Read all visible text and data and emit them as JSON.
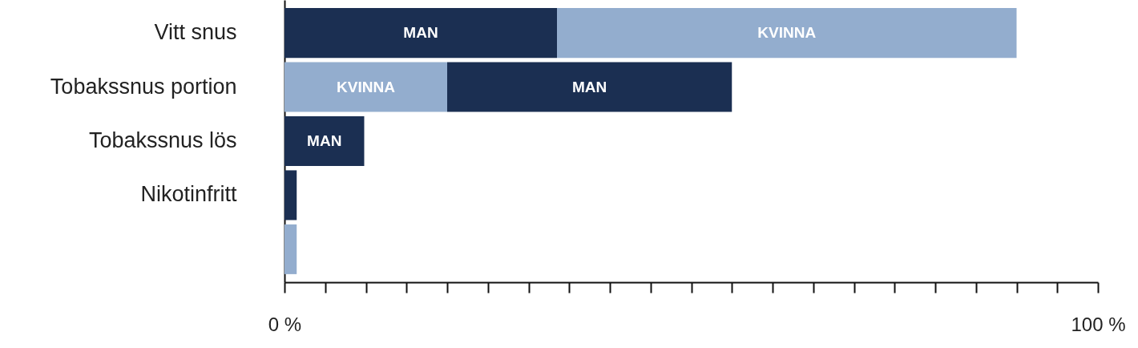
{
  "chart_data": {
    "type": "bar",
    "orientation": "horizontal",
    "stacked": true,
    "categories": [
      "Vitt snus",
      "Tobakssnus portion",
      "Tobakssnus lös",
      "Nikotinfritt",
      null
    ],
    "series": [
      {
        "name": "MAN",
        "color": "#1b2f52",
        "values": [
          33.5,
          null,
          9.8,
          1.5,
          null
        ]
      },
      {
        "name": "KVINNA",
        "color": "#93adce",
        "values": [
          56.5,
          20,
          null,
          null,
          1.5
        ]
      },
      {
        "name": "MAN",
        "color": "#1b2f52",
        "values": [
          null,
          35,
          null,
          null,
          null
        ]
      }
    ],
    "xlim": [
      0,
      100
    ],
    "xticks": [
      {
        "value": 0,
        "label": "0 %"
      },
      {
        "value": 5,
        "label": null
      },
      {
        "value": 10,
        "label": null
      },
      {
        "value": 15,
        "label": null
      },
      {
        "value": 20,
        "label": null
      },
      {
        "value": 25,
        "label": null
      },
      {
        "value": 30,
        "label": null
      },
      {
        "value": 35,
        "label": null
      },
      {
        "value": 40,
        "label": null
      },
      {
        "value": 45,
        "label": null
      },
      {
        "value": 50,
        "label": null
      },
      {
        "value": 55,
        "label": null
      },
      {
        "value": 60,
        "label": null
      },
      {
        "value": 65,
        "label": null
      },
      {
        "value": 70,
        "label": null
      },
      {
        "value": 75,
        "label": null
      },
      {
        "value": 80,
        "label": null
      },
      {
        "value": 85,
        "label": null
      },
      {
        "value": 90,
        "label": null
      },
      {
        "value": 95,
        "label": null
      },
      {
        "value": 100,
        "label": "100 %"
      }
    ],
    "grid": false
  }
}
